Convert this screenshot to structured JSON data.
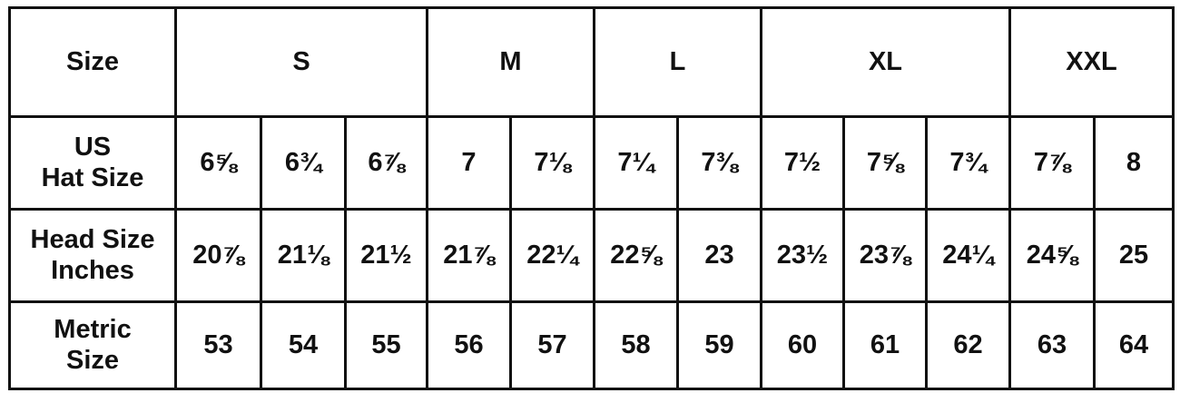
{
  "header": {
    "label": "Size",
    "groups": [
      {
        "label": "S",
        "span": 3
      },
      {
        "label": "M",
        "span": 2
      },
      {
        "label": "L",
        "span": 2
      },
      {
        "label": "XL",
        "span": 3
      },
      {
        "label": "XXL",
        "span": 2
      }
    ]
  },
  "rows": [
    {
      "label_line1": "US",
      "label_line2": "Hat Size",
      "values": [
        "6⅝",
        "6¾",
        "6⅞",
        "7",
        "7⅛",
        "7¼",
        "7⅜",
        "7½",
        "7⅝",
        "7¾",
        "7⅞",
        "8"
      ]
    },
    {
      "label_line1": "Head Size",
      "label_line2": "Inches",
      "values": [
        "20⅞",
        "21⅛",
        "21½",
        "21⅞",
        "22¼",
        "22⅝",
        "23",
        "23½",
        "23⅞",
        "24¼",
        "24⅝",
        "25"
      ]
    },
    {
      "label_line1": "Metric",
      "label_line2": "Size",
      "values": [
        "53",
        "54",
        "55",
        "56",
        "57",
        "58",
        "59",
        "60",
        "61",
        "62",
        "63",
        "64"
      ]
    }
  ]
}
